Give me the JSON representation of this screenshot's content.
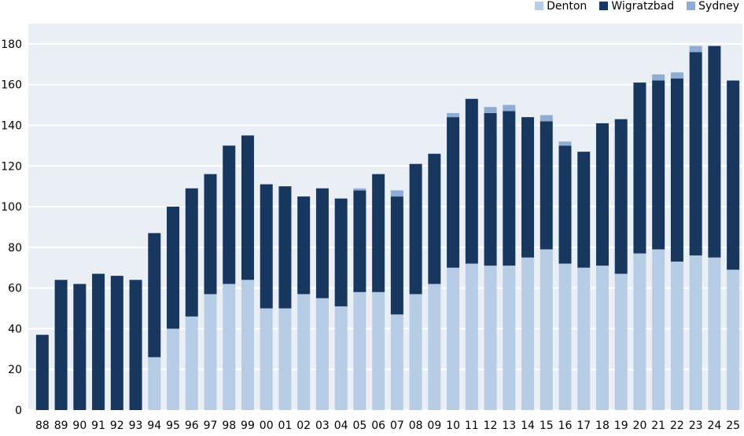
{
  "chart_data": {
    "type": "bar",
    "stacked": true,
    "title": "",
    "xlabel": "",
    "ylabel": "",
    "ylim": [
      0,
      190
    ],
    "yticks": [
      0,
      20,
      40,
      60,
      80,
      100,
      120,
      140,
      160,
      180
    ],
    "grid": true,
    "legend_position": "top-right",
    "categories": [
      "88",
      "89",
      "90",
      "91",
      "92",
      "93",
      "94",
      "95",
      "96",
      "97",
      "98",
      "99",
      "00",
      "01",
      "02",
      "03",
      "04",
      "05",
      "06",
      "07",
      "08",
      "09",
      "10",
      "11",
      "12",
      "13",
      "14",
      "15",
      "16",
      "17",
      "18",
      "19",
      "20",
      "21",
      "22",
      "23",
      "24",
      "25"
    ],
    "series": [
      {
        "name": "Denton",
        "color": "#b7cde6",
        "values": [
          0,
          0,
          0,
          0,
          0,
          0,
          26,
          40,
          46,
          57,
          62,
          64,
          50,
          50,
          57,
          55,
          51,
          58,
          58,
          47,
          57,
          62,
          70,
          72,
          71,
          71,
          75,
          79,
          72,
          70,
          71,
          67,
          77,
          79,
          73,
          76,
          75,
          69
        ]
      },
      {
        "name": "Wigratzbad",
        "color": "#17375e",
        "values": [
          37,
          64,
          62,
          67,
          66,
          64,
          61,
          60,
          63,
          59,
          68,
          71,
          61,
          60,
          48,
          54,
          53,
          50,
          58,
          58,
          64,
          64,
          74,
          81,
          75,
          76,
          69,
          63,
          58,
          57,
          70,
          76,
          84,
          83,
          90,
          100,
          104,
          93
        ]
      },
      {
        "name": "Sydney",
        "color": "#8eacd4",
        "values": [
          0,
          0,
          0,
          0,
          0,
          0,
          0,
          0,
          0,
          0,
          0,
          0,
          0,
          0,
          0,
          0,
          0,
          1,
          0,
          3,
          0,
          0,
          2,
          0,
          3,
          3,
          0,
          3,
          2,
          0,
          0,
          0,
          0,
          3,
          3,
          3,
          0,
          0
        ]
      }
    ]
  }
}
